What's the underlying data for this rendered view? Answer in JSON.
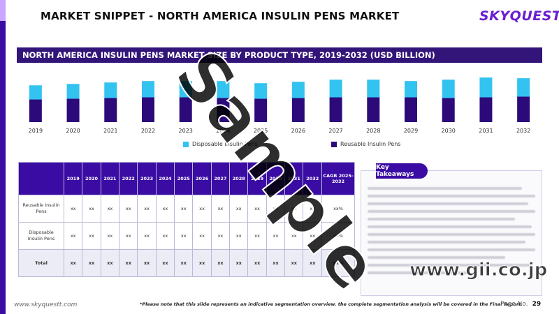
{
  "header": {
    "title": "MARKET SNIPPET - NORTH AMERICA INSULIN PENS MARKET",
    "brand": "SKYQUEST"
  },
  "chart_title": "NORTH AMERICA INSULIN PENS MARKET SIZE BY PRODUCT TYPE, 2019-2032 (USD BILLION)",
  "colors": {
    "disposable": "#33c3f0",
    "reusable": "#2c0a7a",
    "header": "#3a0ca3"
  },
  "chart_data": {
    "type": "bar",
    "stacked": true,
    "title": "NORTH AMERICA INSULIN PENS MARKET SIZE BY PRODUCT TYPE, 2019-2032 (USD BILLION)",
    "categories": [
      "2019",
      "2020",
      "2021",
      "2022",
      "2023",
      "2024",
      "2025",
      "2026",
      "2027",
      "2028",
      "2029",
      "2030",
      "2031",
      "2032"
    ],
    "series": [
      {
        "name": "Reusable Insulin Pens",
        "values": [
          0.32,
          0.33,
          0.34,
          0.35,
          0.35,
          0.34,
          0.33,
          0.34,
          0.35,
          0.35,
          0.35,
          0.34,
          0.35,
          0.36
        ]
      },
      {
        "name": "Disposable Insulin Pens",
        "values": [
          0.2,
          0.21,
          0.22,
          0.23,
          0.23,
          0.24,
          0.22,
          0.23,
          0.25,
          0.25,
          0.23,
          0.26,
          0.28,
          0.26
        ]
      }
    ],
    "ylim": [
      0,
      0.7
    ],
    "grid": false,
    "legend": "bottom"
  },
  "table": {
    "years": [
      "2019",
      "2020",
      "2021",
      "2022",
      "2023",
      "2024",
      "2025",
      "2026",
      "2027",
      "2028",
      "2029",
      "2030",
      "2031",
      "2032"
    ],
    "cagr_header": "CAGR 2025-2032",
    "rows": [
      {
        "label": "Reusable Insulin Pens",
        "values": [
          "xx",
          "xx",
          "xx",
          "xx",
          "xx",
          "xx",
          "xx",
          "xx",
          "xx",
          "xx",
          "xx",
          "xx",
          "xx",
          "xx"
        ],
        "cagr": "xx%"
      },
      {
        "label": "Disposable Insulin Pens",
        "values": [
          "xx",
          "xx",
          "xx",
          "xx",
          "xx",
          "xx",
          "xx",
          "xx",
          "xx",
          "xx",
          "xx",
          "xx",
          "xx",
          "xx"
        ],
        "cagr": "xx%"
      },
      {
        "label": "Total",
        "values": [
          "xx",
          "xx",
          "xx",
          "xx",
          "xx",
          "xx",
          "xx",
          "xx",
          "xx",
          "xx",
          "xx",
          "xx",
          "xx",
          "xx"
        ],
        "cagr": "xx%"
      }
    ]
  },
  "key_takeaways": {
    "title": "Key Takeaways"
  },
  "watermark": "Sample",
  "overlay_url": "www.gii.co.jp",
  "footer": {
    "url": "www.skyquestt.com",
    "note": "*Please note that this slide represents an indicative segmentation overview. the complete segmentation analysis will be covered in the Final Report.",
    "page_label": "Page No.",
    "page_number": "29"
  }
}
